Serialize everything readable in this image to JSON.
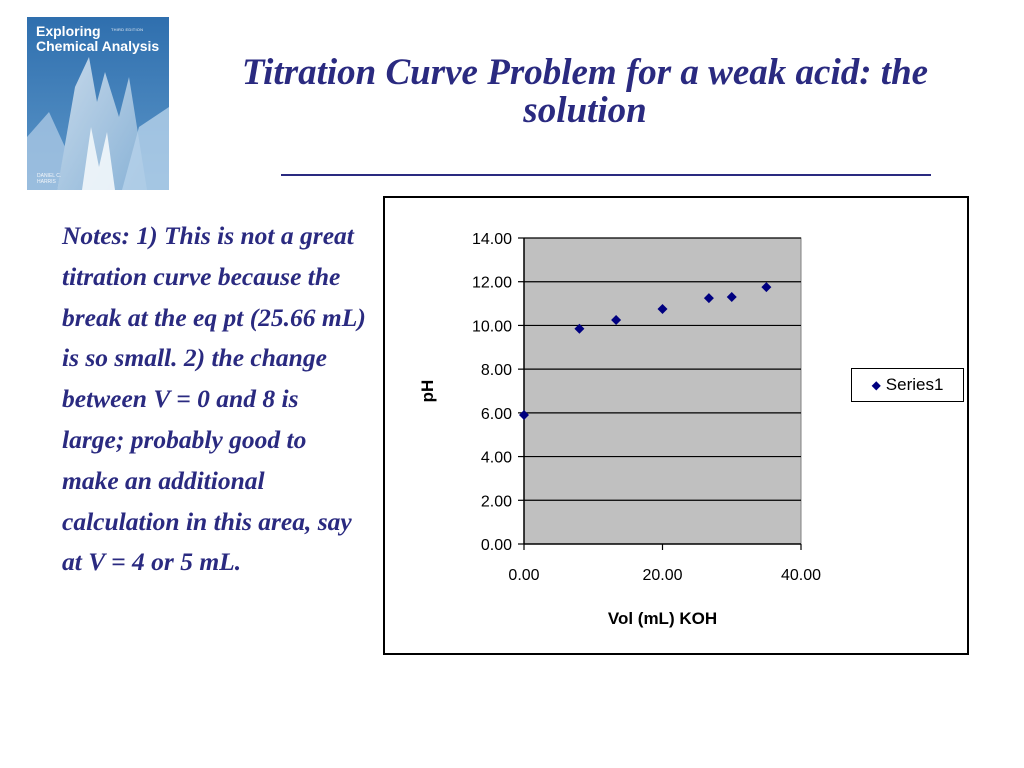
{
  "title": "Titration Curve Problem for a weak acid: the solution",
  "book_cover": {
    "title_line1": "Exploring",
    "title_line2": "Chemical Analysis",
    "edition": "THIRD EDITION",
    "author_line1": "DANIEL C.",
    "author_line2": "HARRIS"
  },
  "notes": "Notes:  1) This is not a great titration curve because the break at the eq pt (25.66 mL) is so small.  2) the change between V = 0 and 8 is large; probably good to make an additional calculation in this area, say at V = 4 or 5 mL.",
  "colors": {
    "title": "#2a2a80",
    "plot_area": "#c0c0c0",
    "marker": "#000080"
  },
  "chart_data": {
    "type": "scatter",
    "xlabel": "Vol (mL) KOH",
    "ylabel": "pH",
    "xlim": [
      0,
      40
    ],
    "ylim": [
      0,
      14
    ],
    "x_ticks": [
      "0.00",
      "20.00",
      "40.00"
    ],
    "y_ticks": [
      "0.00",
      "2.00",
      "4.00",
      "6.00",
      "8.00",
      "10.00",
      "12.00",
      "14.00"
    ],
    "grid": "horizontal",
    "legend_position": "right",
    "series": [
      {
        "name": "Series1",
        "points": [
          {
            "x": 0,
            "y": 5.9
          },
          {
            "x": 8,
            "y": 9.85
          },
          {
            "x": 13.3,
            "y": 10.25
          },
          {
            "x": 20,
            "y": 10.75
          },
          {
            "x": 26.7,
            "y": 11.25
          },
          {
            "x": 30,
            "y": 11.3
          },
          {
            "x": 35,
            "y": 11.75
          }
        ]
      }
    ]
  }
}
